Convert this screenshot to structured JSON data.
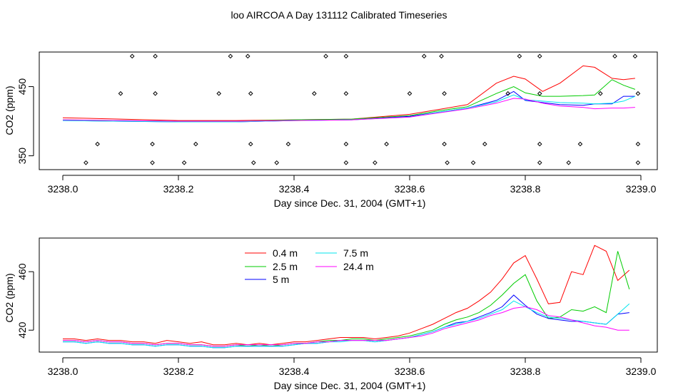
{
  "title": "loo AIRCOA A  Day 131112  Calibrated Timeseries",
  "chart_data": [
    {
      "type": "line",
      "xlabel": "Day since Dec. 31, 2004 (GMT+1)",
      "ylabel": "CO2 (ppm)",
      "xlim": [
        3238.0,
        3239.0
      ],
      "ylim": [
        330,
        500
      ],
      "x_ticks": [
        "3238.0",
        "3238.2",
        "3238.4",
        "3238.6",
        "3238.8",
        "3239.0"
      ],
      "x_tick_values": [
        3238.0,
        3238.2,
        3238.4,
        3238.6,
        3238.8,
        3239.0
      ],
      "y_ticks": [
        "350",
        "450"
      ],
      "y_tick_values": [
        350,
        450
      ],
      "x": [
        3238.0,
        3238.1,
        3238.2,
        3238.3,
        3238.4,
        3238.5,
        3238.6,
        3238.65,
        3238.7,
        3238.75,
        3238.78,
        3238.8,
        3238.83,
        3238.86,
        3238.9,
        3238.92,
        3238.95,
        3238.97,
        3238.99
      ],
      "series": [
        {
          "color": "#ff0000",
          "values": [
            405,
            403,
            401,
            401,
            402,
            403,
            410,
            417,
            424,
            455,
            465,
            461,
            443,
            455,
            480,
            478,
            462,
            460,
            462
          ]
        },
        {
          "color": "#00cc00",
          "values": [
            402,
            401,
            400,
            400,
            402,
            403,
            408,
            415,
            421,
            440,
            450,
            441,
            436,
            436,
            437,
            438,
            460,
            452,
            446
          ]
        },
        {
          "color": "#0000ff",
          "values": [
            401,
            400,
            399,
            399,
            401,
            402,
            407,
            413,
            419,
            430,
            443,
            430,
            427,
            424,
            423,
            425,
            425,
            436,
            436
          ]
        },
        {
          "color": "#00e5ee",
          "values": [
            401,
            400,
            399,
            399,
            401,
            402,
            406,
            413,
            419,
            428,
            438,
            431,
            429,
            427,
            426,
            425,
            426,
            429,
            436
          ]
        },
        {
          "color": "#ff00ff",
          "values": [
            402,
            401,
            400,
            400,
            401,
            402,
            406,
            412,
            418,
            426,
            433,
            432,
            426,
            422,
            420,
            418,
            419,
            419,
            420
          ]
        }
      ],
      "flags": [
        {
          "x": 3238.04,
          "v": 340
        },
        {
          "x": 3238.06,
          "v": 367
        },
        {
          "x": 3238.1,
          "v": 440
        },
        {
          "x": 3238.12,
          "v": 494
        },
        {
          "x": 3238.155,
          "v": 367
        },
        {
          "x": 3238.155,
          "v": 340
        },
        {
          "x": 3238.16,
          "v": 440
        },
        {
          "x": 3238.16,
          "v": 494
        },
        {
          "x": 3238.21,
          "v": 340
        },
        {
          "x": 3238.23,
          "v": 367
        },
        {
          "x": 3238.27,
          "v": 440
        },
        {
          "x": 3238.29,
          "v": 494
        },
        {
          "x": 3238.32,
          "v": 494
        },
        {
          "x": 3238.325,
          "v": 440
        },
        {
          "x": 3238.325,
          "v": 367
        },
        {
          "x": 3238.33,
          "v": 340
        },
        {
          "x": 3238.37,
          "v": 340
        },
        {
          "x": 3238.39,
          "v": 367
        },
        {
          "x": 3238.435,
          "v": 440
        },
        {
          "x": 3238.455,
          "v": 494
        },
        {
          "x": 3238.49,
          "v": 494
        },
        {
          "x": 3238.49,
          "v": 440
        },
        {
          "x": 3238.49,
          "v": 367
        },
        {
          "x": 3238.49,
          "v": 340
        },
        {
          "x": 3238.54,
          "v": 340
        },
        {
          "x": 3238.56,
          "v": 367
        },
        {
          "x": 3238.6,
          "v": 440
        },
        {
          "x": 3238.625,
          "v": 494
        },
        {
          "x": 3238.655,
          "v": 494
        },
        {
          "x": 3238.66,
          "v": 440
        },
        {
          "x": 3238.66,
          "v": 367
        },
        {
          "x": 3238.665,
          "v": 340
        },
        {
          "x": 3238.71,
          "v": 340
        },
        {
          "x": 3238.73,
          "v": 367
        },
        {
          "x": 3238.77,
          "v": 440
        },
        {
          "x": 3238.79,
          "v": 494
        },
        {
          "x": 3238.825,
          "v": 494
        },
        {
          "x": 3238.825,
          "v": 440
        },
        {
          "x": 3238.825,
          "v": 367
        },
        {
          "x": 3238.825,
          "v": 340
        },
        {
          "x": 3238.875,
          "v": 340
        },
        {
          "x": 3238.895,
          "v": 367
        },
        {
          "x": 3238.93,
          "v": 440
        },
        {
          "x": 3238.955,
          "v": 494
        },
        {
          "x": 3238.99,
          "v": 494
        },
        {
          "x": 3238.995,
          "v": 440
        },
        {
          "x": 3238.995,
          "v": 367
        },
        {
          "x": 3238.995,
          "v": 340
        }
      ]
    },
    {
      "type": "line",
      "xlabel": "Day since Dec. 31, 2004 (GMT+1)",
      "ylabel": "CO2 (ppm)",
      "xlim": [
        3238.0,
        3239.0
      ],
      "ylim": [
        405,
        483
      ],
      "x_ticks": [
        "3238.0",
        "3238.2",
        "3238.4",
        "3238.6",
        "3238.8",
        "3239.0"
      ],
      "x_tick_values": [
        3238.0,
        3238.2,
        3238.4,
        3238.6,
        3238.8,
        3239.0
      ],
      "y_ticks": [
        "420",
        "460"
      ],
      "y_tick_values": [
        420,
        460
      ],
      "legend": [
        {
          "label": "0.4 m",
          "color": "#ff0000"
        },
        {
          "label": "2.5 m",
          "color": "#00cc00"
        },
        {
          "label": "5 m",
          "color": "#0000ff"
        },
        {
          "label": "7.5 m",
          "color": "#00e5ee"
        },
        {
          "label": "24.4 m",
          "color": "#ff00ff"
        }
      ],
      "x": [
        3238.0,
        3238.02,
        3238.04,
        3238.06,
        3238.08,
        3238.1,
        3238.12,
        3238.14,
        3238.16,
        3238.18,
        3238.2,
        3238.22,
        3238.24,
        3238.26,
        3238.28,
        3238.3,
        3238.32,
        3238.34,
        3238.36,
        3238.38,
        3238.4,
        3238.42,
        3238.44,
        3238.46,
        3238.48,
        3238.5,
        3238.52,
        3238.54,
        3238.56,
        3238.58,
        3238.6,
        3238.62,
        3238.64,
        3238.66,
        3238.68,
        3238.7,
        3238.72,
        3238.74,
        3238.76,
        3238.78,
        3238.8,
        3238.82,
        3238.84,
        3238.86,
        3238.88,
        3238.9,
        3238.92,
        3238.94,
        3238.96,
        3238.98
      ],
      "series": [
        {
          "name": "0.4 m",
          "color": "#ff0000",
          "values": [
            414,
            414,
            413,
            414,
            413,
            413,
            412,
            412,
            411,
            413,
            412,
            411,
            412,
            410,
            410,
            411,
            410,
            411,
            410,
            411,
            412,
            412,
            413,
            414,
            415,
            415,
            415,
            414,
            415,
            416,
            418,
            421,
            424,
            428,
            432,
            435,
            440,
            446,
            455,
            466,
            471,
            455,
            438,
            439,
            460,
            458,
            478,
            474,
            454,
            461
          ]
        },
        {
          "name": "2.5 m",
          "color": "#00cc00",
          "values": [
            413,
            413,
            412,
            413,
            412,
            412,
            411,
            411,
            410,
            411,
            411,
            410,
            410,
            409,
            409,
            410,
            409,
            410,
            409,
            410,
            411,
            411,
            412,
            413,
            413,
            414,
            414,
            413,
            414,
            415,
            416,
            418,
            420,
            424,
            427,
            429,
            432,
            437,
            444,
            452,
            458,
            440,
            428,
            429,
            434,
            433,
            436,
            432,
            474,
            448
          ]
        },
        {
          "name": "5 m",
          "color": "#0000ff",
          "values": [
            412,
            412,
            411,
            412,
            411,
            411,
            410,
            410,
            409,
            410,
            410,
            409,
            409,
            408,
            408,
            409,
            409,
            409,
            409,
            409,
            410,
            411,
            411,
            412,
            413,
            413,
            413,
            412,
            413,
            414,
            415,
            417,
            419,
            422,
            425,
            426,
            429,
            432,
            436,
            444,
            437,
            431,
            428,
            427,
            426,
            426,
            425,
            424,
            431,
            432
          ]
        },
        {
          "name": "7.5 m",
          "color": "#00e5ee",
          "values": [
            412,
            412,
            411,
            412,
            411,
            411,
            410,
            410,
            409,
            410,
            410,
            409,
            409,
            408,
            408,
            409,
            409,
            409,
            409,
            409,
            410,
            411,
            411,
            412,
            412,
            413,
            413,
            412,
            413,
            414,
            415,
            417,
            419,
            422,
            424,
            426,
            428,
            431,
            434,
            440,
            436,
            432,
            429,
            428,
            427,
            426,
            425,
            424,
            431,
            438
          ]
        },
        {
          "name": "24.4 m",
          "color": "#ff00ff",
          "values": [
            413,
            413,
            412,
            413,
            412,
            412,
            411,
            411,
            410,
            411,
            411,
            410,
            410,
            409,
            409,
            410,
            410,
            410,
            410,
            410,
            411,
            411,
            412,
            412,
            413,
            413,
            413,
            413,
            413,
            414,
            415,
            416,
            418,
            421,
            423,
            425,
            427,
            430,
            432,
            435,
            436,
            434,
            430,
            429,
            427,
            425,
            423,
            422,
            420,
            420
          ]
        }
      ]
    }
  ]
}
